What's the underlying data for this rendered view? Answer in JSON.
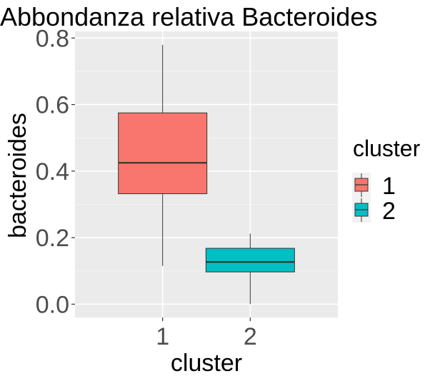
{
  "chart_data": {
    "type": "boxplot",
    "title": "Abbondanza relativa Bacteroides",
    "xlabel": "cluster",
    "ylabel": "bacteroides",
    "categories": [
      "1",
      "2"
    ],
    "ylim": [
      -0.04,
      0.82
    ],
    "y_ticks": [
      0.0,
      0.2,
      0.4,
      0.6,
      0.8
    ],
    "y_tick_labels": [
      "0.0",
      "0.2",
      "0.4",
      "0.6",
      "0.8"
    ],
    "grid": true,
    "boxes": [
      {
        "category": "1",
        "min": 0.115,
        "q1": 0.332,
        "median": 0.425,
        "q3": 0.575,
        "max": 0.78,
        "color": "#F8766D"
      },
      {
        "category": "2",
        "min": 0.0,
        "q1": 0.097,
        "median": 0.127,
        "q3": 0.168,
        "max": 0.212,
        "color": "#00BFC4"
      }
    ],
    "legend": {
      "title": "cluster",
      "position": "right",
      "entries": [
        {
          "label": "1",
          "color": "#F8766D"
        },
        {
          "label": "2",
          "color": "#00BFC4"
        }
      ]
    }
  }
}
